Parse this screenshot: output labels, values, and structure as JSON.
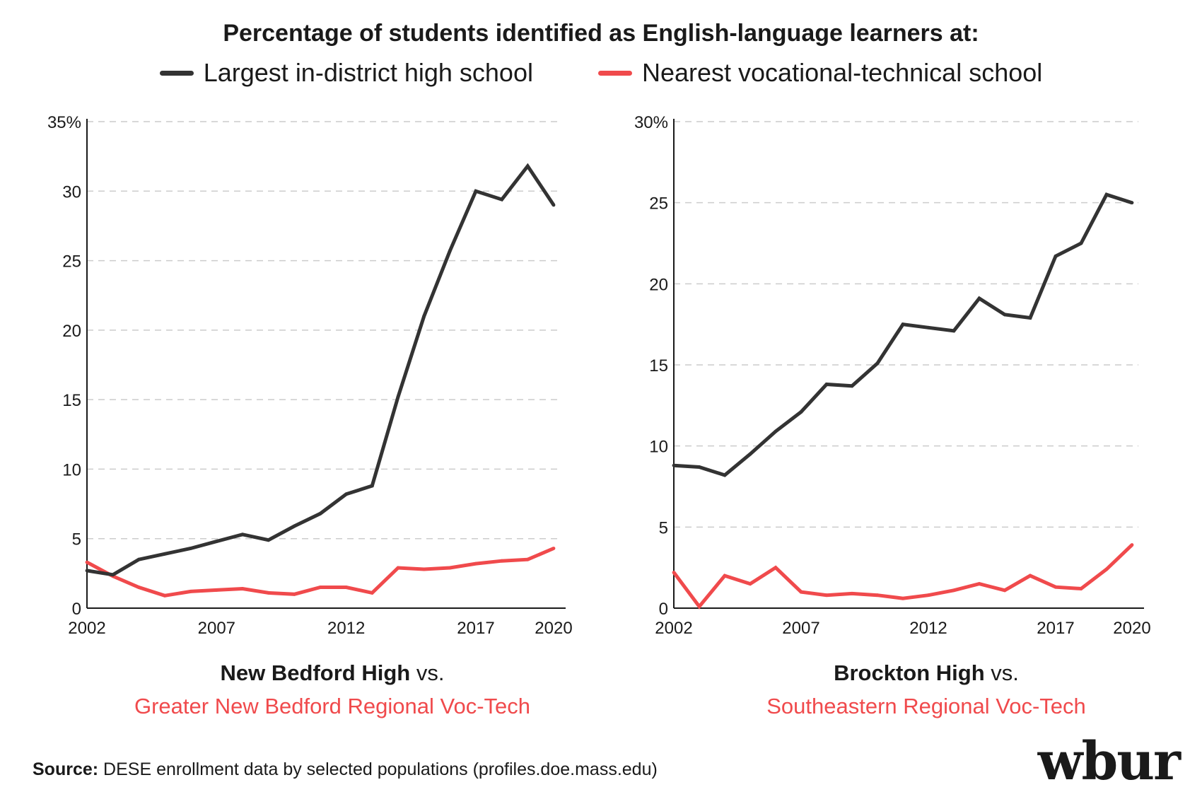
{
  "title": "Percentage of students identified as English-language learners at:",
  "legend": {
    "black_label": "Largest in-district high school",
    "red_label": "Nearest vocational-technical school"
  },
  "colors": {
    "district": "#333333",
    "voc": "#f04a4c",
    "grid": "#cccccc"
  },
  "left_caption": {
    "school": "New Bedford High",
    "vs": " vs.",
    "voc": "Greater New Bedford Regional Voc-Tech"
  },
  "right_caption": {
    "school": "Brockton High",
    "vs": " vs.",
    "voc": "Southeastern Regional Voc-Tech"
  },
  "source": {
    "label": "Source:",
    "text": " DESE enrollment data by selected populations (profiles.doe.mass.edu)"
  },
  "logo": "wbur",
  "chart_data": [
    {
      "type": "line",
      "x": [
        2002,
        2003,
        2004,
        2005,
        2006,
        2007,
        2008,
        2009,
        2010,
        2011,
        2012,
        2013,
        2014,
        2015,
        2016,
        2017,
        2018,
        2019,
        2020
      ],
      "xticks": [
        2002,
        2007,
        2012,
        2017,
        2020
      ],
      "xlim": [
        2002,
        2020
      ],
      "ylim": [
        0,
        35
      ],
      "yticks": [
        0,
        5,
        10,
        15,
        20,
        25,
        30,
        35
      ],
      "ytick_labels": [
        "0",
        "5",
        "10",
        "15",
        "20",
        "25",
        "30",
        "35%"
      ],
      "series": [
        {
          "name": "Largest in-district high school",
          "color": "#333333",
          "values": [
            2.7,
            2.4,
            3.5,
            3.9,
            4.3,
            4.8,
            5.3,
            4.9,
            5.9,
            6.8,
            8.2,
            8.8,
            15.2,
            21.0,
            25.7,
            30.0,
            29.4,
            31.8,
            29.0
          ]
        },
        {
          "name": "Nearest vocational-technical school",
          "color": "#f04a4c",
          "values": [
            3.3,
            2.3,
            1.5,
            0.9,
            1.2,
            1.3,
            1.4,
            1.1,
            1.0,
            1.5,
            1.5,
            1.1,
            2.9,
            2.8,
            2.9,
            3.2,
            3.4,
            3.5,
            4.3
          ]
        }
      ]
    },
    {
      "type": "line",
      "x": [
        2002,
        2003,
        2004,
        2005,
        2006,
        2007,
        2008,
        2009,
        2010,
        2011,
        2012,
        2013,
        2014,
        2015,
        2016,
        2017,
        2018,
        2019,
        2020
      ],
      "xticks": [
        2002,
        2007,
        2012,
        2017,
        2020
      ],
      "xlim": [
        2002,
        2020
      ],
      "ylim": [
        0,
        30
      ],
      "yticks": [
        0,
        5,
        10,
        15,
        20,
        25,
        30
      ],
      "ytick_labels": [
        "0",
        "5",
        "10",
        "15",
        "20",
        "25",
        "30%"
      ],
      "series": [
        {
          "name": "Largest in-district high school",
          "color": "#333333",
          "values": [
            8.8,
            8.7,
            8.2,
            9.5,
            10.9,
            12.1,
            13.8,
            13.7,
            15.1,
            17.5,
            17.3,
            17.1,
            19.1,
            18.1,
            17.9,
            21.7,
            22.5,
            25.5,
            25.0
          ]
        },
        {
          "name": "Nearest vocational-technical school",
          "color": "#f04a4c",
          "values": [
            2.2,
            0.1,
            2.0,
            1.5,
            2.5,
            1.0,
            0.8,
            0.9,
            0.8,
            0.6,
            0.8,
            1.1,
            1.5,
            1.1,
            2.0,
            1.3,
            1.2,
            2.4,
            3.9
          ]
        }
      ]
    }
  ]
}
